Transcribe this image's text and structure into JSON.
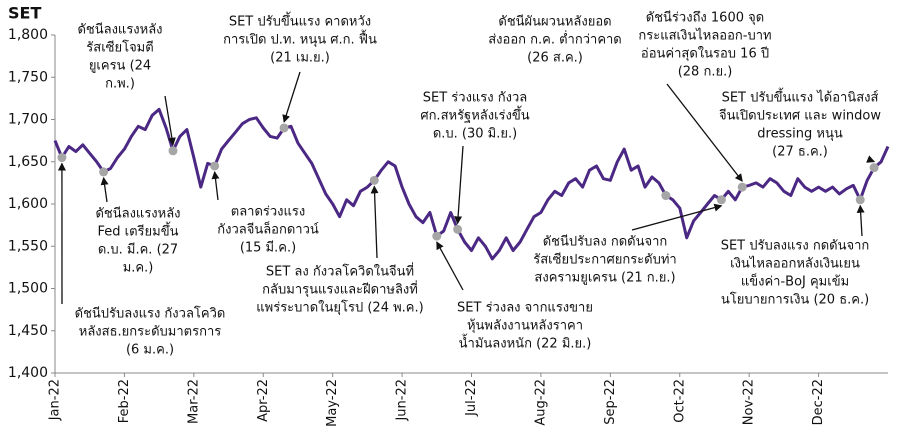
{
  "chart_data": {
    "type": "line",
    "title": "SET",
    "categories": [
      "Jan-22",
      null,
      null,
      null,
      null,
      null,
      null,
      null,
      null,
      null,
      "Feb-22",
      null,
      null,
      null,
      null,
      null,
      null,
      null,
      null,
      null,
      "Mar-22",
      null,
      null,
      null,
      null,
      null,
      null,
      null,
      null,
      null,
      "Apr-22",
      null,
      null,
      null,
      null,
      null,
      null,
      null,
      null,
      null,
      "May-22",
      null,
      null,
      null,
      null,
      null,
      null,
      null,
      null,
      null,
      "Jun-22",
      null,
      null,
      null,
      null,
      null,
      null,
      null,
      null,
      null,
      "Jul-22",
      null,
      null,
      null,
      null,
      null,
      null,
      null,
      null,
      null,
      "Aug-22",
      null,
      null,
      null,
      null,
      null,
      null,
      null,
      null,
      null,
      "Sep-22",
      null,
      null,
      null,
      null,
      null,
      null,
      null,
      null,
      null,
      "Oct-22",
      null,
      null,
      null,
      null,
      null,
      null,
      null,
      null,
      null,
      "Nov-22",
      null,
      null,
      null,
      null,
      null,
      null,
      null,
      null,
      null,
      "Dec-22",
      null,
      null,
      null,
      null,
      null,
      null,
      null,
      null,
      null,
      null
    ],
    "series": [
      {
        "name": "SET",
        "color": "#4b2884",
        "values": [
          1675,
          1655,
          1668,
          1662,
          1670,
          1660,
          1650,
          1638,
          1642,
          1655,
          1665,
          1680,
          1692,
          1688,
          1705,
          1712,
          1690,
          1663,
          1680,
          1688,
          1655,
          1620,
          1648,
          1645,
          1665,
          1675,
          1685,
          1695,
          1700,
          1702,
          1690,
          1680,
          1678,
          1690,
          1692,
          1672,
          1660,
          1648,
          1630,
          1612,
          1600,
          1585,
          1605,
          1598,
          1615,
          1620,
          1628,
          1640,
          1650,
          1645,
          1620,
          1600,
          1585,
          1578,
          1590,
          1562,
          1568,
          1590,
          1570,
          1555,
          1545,
          1560,
          1550,
          1535,
          1545,
          1560,
          1545,
          1555,
          1570,
          1585,
          1590,
          1605,
          1615,
          1610,
          1625,
          1630,
          1620,
          1640,
          1645,
          1630,
          1628,
          1650,
          1665,
          1640,
          1645,
          1620,
          1632,
          1625,
          1610,
          1605,
          1595,
          1560,
          1580,
          1590,
          1600,
          1610,
          1605,
          1615,
          1605,
          1620,
          1622,
          1625,
          1620,
          1630,
          1625,
          1615,
          1610,
          1630,
          1620,
          1615,
          1620,
          1615,
          1620,
          1612,
          1618,
          1622,
          1605,
          1628,
          1643,
          1650,
          1668
        ]
      }
    ],
    "ylim": [
      1400,
      1800
    ],
    "yticks": [
      {
        "value": 1400,
        "label": "1,400"
      },
      {
        "value": 1450,
        "label": "1,450"
      },
      {
        "value": 1500,
        "label": "1,500"
      },
      {
        "value": 1550,
        "label": "1,550"
      },
      {
        "value": 1600,
        "label": "1,600"
      },
      {
        "value": 1650,
        "label": "1,650"
      },
      {
        "value": 1700,
        "label": "1,700"
      },
      {
        "value": 1750,
        "label": "1,750"
      },
      {
        "value": 1800,
        "label": "1,800"
      }
    ],
    "annotations": [
      {
        "text": [
          "ดัชนีปรับลงแรง กังวลโควิด",
          "หลังสธ.ยกระดับมาตรการ",
          "(6 ม.ค.)"
        ]
      },
      {
        "text": [
          "ดัชนีลงแรงหลัง",
          "Fed เตรียมขึ้น",
          "ด.บ. มี.ค. (27",
          "ม.ค.)"
        ]
      },
      {
        "text": [
          "ดัชนีลงแรงหลัง",
          "รัสเซียโจมตี",
          "ยูเครน (24",
          "ก.พ.)"
        ]
      },
      {
        "text": [
          "ตลาดร่วงแรง",
          "กังวลจีนล็อกดาวน์",
          "(15 มี.ค.)"
        ]
      },
      {
        "text": [
          "SET ปรับขึ้นแรง คาดหวัง",
          "การเปิด ป.ท. หนุน ศ.ก. ฟื้น",
          "(21 เม.ย.)"
        ]
      },
      {
        "text": [
          "SET ลง กังวลโควิดในจีนที่",
          "กลับมารุนแรงและฝีดาษลิงที่",
          "แพร่ระบาดในยุโรป (24 พ.ค.)"
        ]
      },
      {
        "text": [
          "SET ร่วงลง จากแรงขาย",
          "หุ้นพลังงานหลังราคา",
          "น้ำมันลงหนัก (22 มิ.ย.)"
        ]
      },
      {
        "text": [
          "SET ร่วงแรง กังวล",
          "ศก.สหรัฐหลังเร่งขึ้น",
          "ด.บ. (30 มิ.ย.)"
        ]
      },
      {
        "text": [
          "ดัชนีผันผวนหลังยอด",
          "ส่งออก ก.ค. ต่ำกว่าคาด",
          "(26 ส.ค.)"
        ]
      },
      {
        "text": [
          "ดัชนีปรับลง กดดันจาก",
          "รัสเซียประกาศยกระดับท่า",
          "สงครามยูเครน (21 ก.ย.)"
        ]
      },
      {
        "text": [
          "ดัชนีร่วงถึง 1600 จุด",
          "กระแสเงินไหลออก-บาท",
          "อ่อนค่าสุดในรอบ 16 ปี",
          "(28 ก.ย.)"
        ]
      },
      {
        "text": [
          "SET ปรับขึ้นแรง ได้อานิสงส์",
          "จีนเปิดประเทศ และ window",
          "dressing หนุน",
          "(27 ธ.ค.)"
        ]
      },
      {
        "text": [
          "SET ปรับลงแรง กดดันจาก",
          "เงินไหลออกหลังเงินเยน",
          "แข็งค่า-BoJ คุมเข้ม",
          "นโยบายการเงิน (20 ธ.ค.)"
        ]
      }
    ]
  }
}
